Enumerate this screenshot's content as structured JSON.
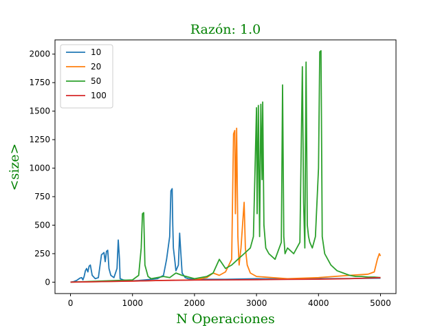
{
  "chart_data": {
    "type": "line",
    "title": "Razón: 1.0",
    "xlabel": "N Operaciones",
    "ylabel": "<size>",
    "xlim": [
      -250,
      5250
    ],
    "ylim": [
      -100,
      2125
    ],
    "xticks": [
      0,
      1000,
      2000,
      3000,
      4000,
      5000
    ],
    "yticks": [
      0,
      250,
      500,
      750,
      1000,
      1250,
      1500,
      1750,
      2000
    ],
    "grid": false,
    "legend_position": "top-left",
    "series": [
      {
        "name": "10",
        "color": "#1f77b4",
        "x": [
          0,
          50,
          100,
          150,
          180,
          200,
          220,
          240,
          260,
          280,
          300,
          320,
          350,
          400,
          450,
          480,
          500,
          520,
          540,
          560,
          580,
          600,
          620,
          650,
          700,
          750,
          770,
          790,
          800,
          850,
          900,
          1000,
          1100,
          1200,
          1300,
          1400,
          1500,
          1550,
          1600,
          1620,
          1640,
          1650,
          1660,
          1680,
          1700,
          1740,
          1760,
          1780,
          1800,
          1850,
          1900,
          2000,
          2500,
          3000,
          3500,
          4000,
          4500,
          5000
        ],
        "y": [
          0,
          5,
          15,
          35,
          40,
          20,
          50,
          100,
          120,
          90,
          140,
          150,
          60,
          30,
          40,
          160,
          240,
          250,
          260,
          180,
          270,
          280,
          120,
          60,
          40,
          120,
          370,
          200,
          30,
          20,
          15,
          12,
          15,
          20,
          25,
          30,
          60,
          200,
          400,
          800,
          820,
          500,
          300,
          200,
          100,
          150,
          430,
          250,
          80,
          40,
          30,
          25,
          25,
          30,
          28,
          30,
          32,
          35
        ]
      },
      {
        "name": "20",
        "color": "#ff7f0e",
        "x": [
          0,
          500,
          1000,
          1500,
          2000,
          2200,
          2300,
          2400,
          2500,
          2600,
          2630,
          2650,
          2660,
          2680,
          2700,
          2720,
          2750,
          2800,
          2820,
          2850,
          2900,
          3000,
          3500,
          4000,
          4500,
          4800,
          4900,
          4950,
          4980,
          5000
        ],
        "y": [
          0,
          5,
          10,
          15,
          20,
          40,
          80,
          60,
          90,
          200,
          1300,
          1330,
          600,
          1350,
          400,
          150,
          300,
          700,
          300,
          150,
          80,
          50,
          30,
          40,
          60,
          70,
          90,
          200,
          250,
          230
        ]
      },
      {
        "name": "50",
        "color": "#2ca02c",
        "x": [
          0,
          500,
          1000,
          1100,
          1140,
          1160,
          1180,
          1200,
          1250,
          1300,
          1400,
          1500,
          1600,
          1700,
          1800,
          2000,
          2200,
          2300,
          2400,
          2500,
          2600,
          2700,
          2800,
          2900,
          2950,
          3000,
          3010,
          3030,
          3050,
          3070,
          3090,
          3100,
          3120,
          3150,
          3200,
          3300,
          3400,
          3420,
          3440,
          3460,
          3500,
          3600,
          3700,
          3740,
          3760,
          3780,
          3800,
          3820,
          3840,
          3860,
          3900,
          3950,
          4000,
          4020,
          4040,
          4060,
          4100,
          4200,
          4300,
          4400,
          4500,
          4600,
          4700,
          4800,
          4900,
          5000
        ],
        "y": [
          0,
          10,
          20,
          60,
          300,
          600,
          610,
          150,
          50,
          30,
          40,
          50,
          40,
          80,
          60,
          30,
          50,
          80,
          200,
          120,
          150,
          200,
          250,
          300,
          400,
          1530,
          600,
          1550,
          400,
          1560,
          900,
          1580,
          500,
          300,
          250,
          200,
          350,
          1730,
          400,
          250,
          300,
          250,
          350,
          1890,
          700,
          300,
          1930,
          500,
          400,
          350,
          300,
          400,
          1000,
          2020,
          2030,
          400,
          250,
          150,
          100,
          80,
          60,
          50,
          50,
          45,
          45,
          40
        ]
      },
      {
        "name": "100",
        "color": "#d62728",
        "x": [
          0,
          500,
          1000,
          1500,
          2000,
          2500,
          3000,
          3500,
          4000,
          4500,
          5000
        ],
        "y": [
          0,
          5,
          10,
          15,
          18,
          20,
          22,
          24,
          26,
          30,
          40
        ]
      }
    ]
  }
}
